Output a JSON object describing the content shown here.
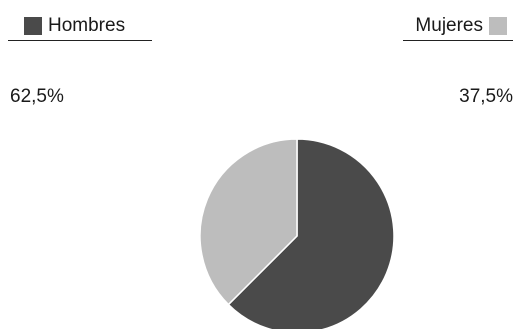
{
  "chart_data": {
    "type": "pie",
    "title": "",
    "start_angle_deg": 0,
    "direction": "clockwise",
    "legend_placement": "top-left and top-right",
    "slices": [
      {
        "label": "Hombres",
        "value": 62.5,
        "value_label": "62,5%",
        "color": "#4a4a4a"
      },
      {
        "label": "Mujeres",
        "value": 37.5,
        "value_label": "37,5%",
        "color": "#bdbdbd"
      }
    ]
  }
}
